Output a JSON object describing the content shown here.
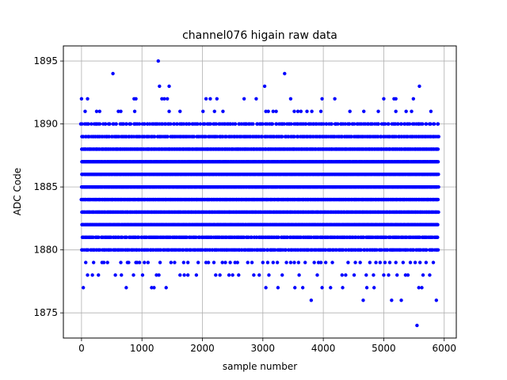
{
  "chart_data": {
    "type": "scatter",
    "title": "channel076 higain raw data",
    "xlabel": "sample number",
    "ylabel": "ADC Code",
    "xlim": [
      -300,
      6200
    ],
    "ylim": [
      1873,
      1896.2
    ],
    "xticks": [
      0,
      1000,
      2000,
      3000,
      4000,
      5000,
      6000
    ],
    "yticks": [
      1875,
      1880,
      1885,
      1890,
      1895
    ],
    "grid": true,
    "marker_color": "#0000ff",
    "x_range": [
      0,
      5900
    ],
    "levels": [
      {
        "value": 1874,
        "x": [
          5550
        ]
      },
      {
        "value": 1876,
        "x": [
          3800,
          4660,
          5130,
          5290,
          5870
        ]
      },
      {
        "value": 1877,
        "x": [
          30,
          740,
          1160,
          1200,
          1400,
          3050,
          3250,
          3530,
          3660,
          3980,
          4120,
          4320,
          4720,
          4840,
          5580,
          5630
        ]
      },
      {
        "value": 1878,
        "x": [
          100,
          180,
          280,
          560,
          660,
          860,
          1010,
          1240,
          1280,
          1630,
          1700,
          1760,
          1900,
          2220,
          2290,
          2440,
          2500,
          2600,
          2850,
          2940,
          3100,
          3320,
          3600,
          3900,
          4310,
          4370,
          4510,
          4710,
          4830,
          5000,
          5080,
          5220,
          5360,
          5400,
          5650,
          5760
        ]
      },
      {
        "value": 1879,
        "x": [
          70,
          200,
          340,
          370,
          430,
          650,
          760,
          780,
          900,
          920,
          960,
          1040,
          1100,
          1300,
          1480,
          1540,
          1690,
          1760,
          1930,
          2060,
          2100,
          2190,
          2330,
          2380,
          2460,
          2540,
          2580,
          2750,
          2820,
          3000,
          3080,
          3170,
          3240,
          3390,
          3460,
          3520,
          3590,
          3700,
          3850,
          3920,
          3960,
          4040,
          4150,
          4410,
          4530,
          4610,
          4770,
          4870,
          4940,
          5020,
          5100,
          5200,
          5320,
          5440,
          5520,
          5600,
          5700,
          5820
        ]
      },
      {
        "value": 1880,
        "x": [
          0,
          5900
        ],
        "dense": true,
        "n": 300
      },
      {
        "value": 1881,
        "x": [
          0,
          5900
        ],
        "dense": true,
        "n": 320
      },
      {
        "value": 1882,
        "x": [
          0,
          5900
        ],
        "dense": true,
        "n": 600
      },
      {
        "value": 1883,
        "x": [
          0,
          5900
        ],
        "dense": true,
        "n": 600
      },
      {
        "value": 1884,
        "x": [
          0,
          5900
        ],
        "dense": true,
        "n": 600
      },
      {
        "value": 1885,
        "x": [
          0,
          5900
        ],
        "dense": true,
        "n": 600
      },
      {
        "value": 1886,
        "x": [
          0,
          5900
        ],
        "dense": true,
        "n": 600
      },
      {
        "value": 1887,
        "x": [
          0,
          5900
        ],
        "dense": true,
        "n": 600
      },
      {
        "value": 1888,
        "x": [
          0,
          5900
        ],
        "dense": true,
        "n": 500
      },
      {
        "value": 1889,
        "x": [
          0,
          5900
        ],
        "dense": true,
        "n": 300
      },
      {
        "value": 1890,
        "x": [
          0,
          5900
        ],
        "dense": true,
        "n": 220
      },
      {
        "value": 1891,
        "x": [
          60,
          250,
          300,
          610,
          650,
          880,
          1450,
          1630,
          2010,
          2200,
          2340,
          3050,
          3090,
          3170,
          3220,
          3520,
          3580,
          3630,
          3730,
          3810,
          3960,
          4440,
          4670,
          4910,
          5200,
          5370,
          5460,
          5780
        ]
      },
      {
        "value": 1892,
        "x": [
          0,
          100,
          870,
          900,
          1330,
          1370,
          1420,
          2060,
          2130,
          2240,
          2690,
          2890,
          3460,
          3980,
          4190,
          5000,
          5170,
          5200,
          5490
        ]
      },
      {
        "value": 1893,
        "x": [
          1290,
          1450,
          3030,
          5590
        ]
      },
      {
        "value": 1894,
        "x": [
          520,
          3360
        ]
      },
      {
        "value": 1895,
        "x": [
          1270
        ]
      }
    ]
  }
}
